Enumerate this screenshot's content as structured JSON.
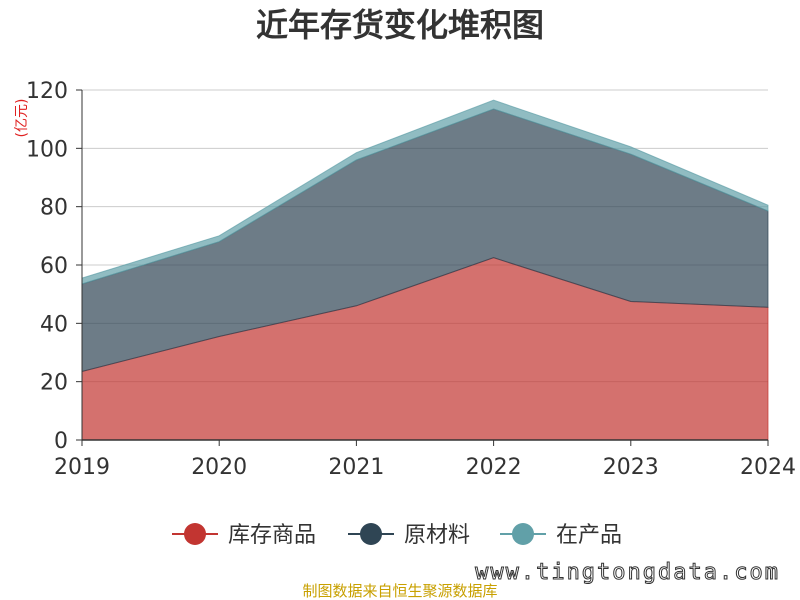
{
  "chart_data": {
    "type": "area",
    "stacked": true,
    "title": "近年存货变化堆积图",
    "ylabel": "(亿元)",
    "xlabel": "",
    "categories": [
      "2019",
      "2020",
      "2021",
      "2022",
      "2023",
      "2024"
    ],
    "ylim": [
      0,
      120
    ],
    "yticks": [
      0,
      20,
      40,
      60,
      80,
      100,
      120
    ],
    "grid": true,
    "legend_position": "bottom",
    "series": [
      {
        "name": "库存商品",
        "color": "#c23531",
        "values": [
          23.5,
          35.5,
          46,
          62.5,
          47.5,
          45.5
        ]
      },
      {
        "name": "原材料",
        "color": "#2f4554",
        "values": [
          30,
          32.5,
          50,
          51,
          50.5,
          33
        ]
      },
      {
        "name": "在产品",
        "color": "#61a0a8",
        "values": [
          2,
          2,
          2.5,
          3,
          2.5,
          2
        ]
      }
    ]
  },
  "footer": {
    "source": "制图数据来自恒生聚源数据库",
    "watermark": "www.tingtongdata.com"
  }
}
